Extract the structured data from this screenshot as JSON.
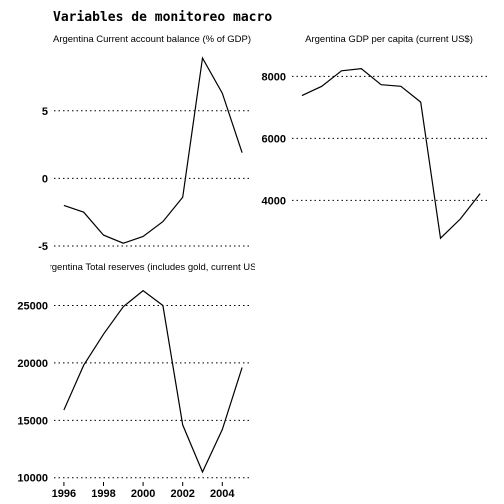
{
  "title": "Variables de monitoreo macro",
  "chart_data": [
    {
      "type": "line",
      "title": "Argentina Current account balance (% of GDP)",
      "x": [
        1996,
        1997,
        1998,
        1999,
        2000,
        2001,
        2002,
        2003,
        2004,
        2005
      ],
      "series": [
        {
          "values": [
            -2.0,
            -2.5,
            -4.2,
            -4.8,
            -4.3,
            -3.2,
            -1.4,
            8.9,
            6.3,
            1.9
          ]
        }
      ],
      "yticks": [
        -5,
        0,
        5
      ],
      "ylim": [
        -5.3,
        9.5
      ],
      "xlim": [
        1995.5,
        2005.5
      ],
      "grid": true
    },
    {
      "type": "line",
      "title": "Argentina GDP per capita (current US$)",
      "x": [
        1996,
        1997,
        1998,
        1999,
        2000,
        2001,
        2002,
        2003,
        2004,
        2005
      ],
      "series": [
        {
          "values": [
            7380,
            7680,
            8180,
            8250,
            7730,
            7680,
            7170,
            2780,
            3400,
            4220
          ]
        }
      ],
      "yticks": [
        4000,
        6000,
        8000
      ],
      "ylim": [
        2400,
        8850
      ],
      "xlim": [
        1995.5,
        2005.5
      ],
      "grid": true
    },
    {
      "type": "line",
      "title": "Argentina Total reserves (includes gold, current US$",
      "x": [
        1996,
        1997,
        1998,
        1999,
        2000,
        2001,
        2002,
        2003,
        2004,
        2005
      ],
      "series": [
        {
          "values": [
            15900,
            19800,
            22500,
            24900,
            26300,
            25000,
            14600,
            10500,
            14200,
            19600
          ]
        }
      ],
      "yticks": [
        10000,
        15000,
        20000,
        25000
      ],
      "xticks": [
        1996,
        1998,
        2000,
        2002,
        2004
      ],
      "ylim": [
        9800,
        27400
      ],
      "xlim": [
        1995.5,
        2005.5
      ],
      "grid": true
    }
  ]
}
